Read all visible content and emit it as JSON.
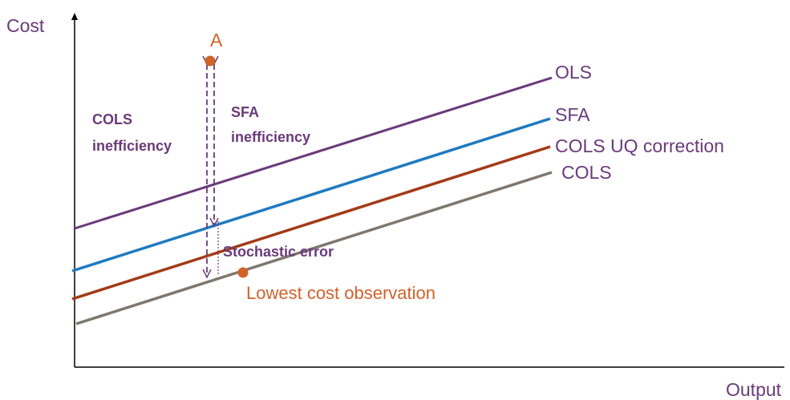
{
  "axes": {
    "y_label": "Cost",
    "x_label": "Output"
  },
  "lines": [
    {
      "label": "OLS"
    },
    {
      "label": "SFA"
    },
    {
      "label": "COLS UQ correction"
    },
    {
      "label": "COLS"
    }
  ],
  "points": [
    {
      "label": "A"
    },
    {
      "label": "Lowest cost observation"
    }
  ],
  "annotations": {
    "cols_inefficiency": [
      "COLS",
      "inefficiency"
    ],
    "sfa_inefficiency": [
      "SFA",
      "inefficiency"
    ],
    "stochastic_error": "Stochastic error"
  }
}
